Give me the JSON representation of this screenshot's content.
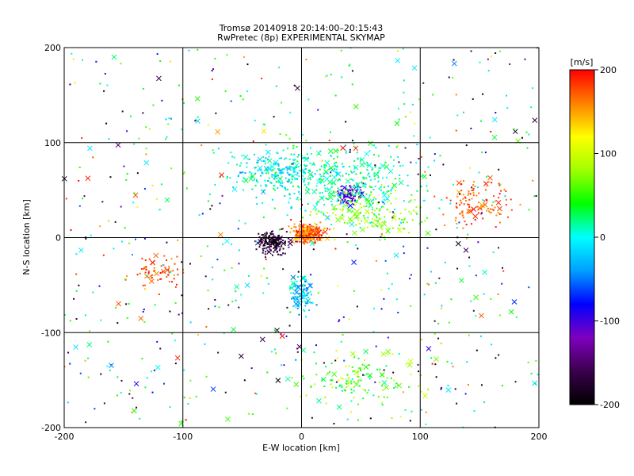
{
  "chart_data": {
    "type": "scatter",
    "title_line1": "Tromsø 20140918 20:14:00–20:15:43",
    "title_line2": "RwPretec (8p) EXPERIMENTAL SKYMAP",
    "xlabel": "E-W location [km]",
    "ylabel": "N-S location [km]",
    "xlim": [
      -200,
      200
    ],
    "ylim": [
      -200,
      200
    ],
    "xticks": [
      -200,
      -100,
      0,
      100,
      200
    ],
    "yticks": [
      -200,
      -100,
      0,
      100,
      200
    ],
    "xtick_labels": [
      "-200",
      "-100",
      "0",
      "100",
      "200"
    ],
    "ytick_labels": [
      "-200",
      "-100",
      "0",
      "100",
      "200"
    ],
    "grid_lines_x": [
      -100,
      0,
      100
    ],
    "grid_lines_y": [
      -100,
      0,
      100
    ],
    "markers": [
      "dot",
      "x"
    ],
    "colorbar": {
      "label": "[m/s]",
      "range": [
        -200,
        200
      ],
      "ticks": [
        200,
        100,
        0,
        -100,
        -200
      ],
      "tick_labels": [
        "200",
        "100",
        "0",
        "-100",
        "-200"
      ],
      "colormap": [
        "#000000",
        "#3a004d",
        "#8000c0",
        "#0000ff",
        "#00a0ff",
        "#00ffff",
        "#00ff00",
        "#a0ff00",
        "#ffff00",
        "#ff8000",
        "#ff0000"
      ]
    },
    "clusters": [
      {
        "center": [
          5,
          5
        ],
        "spread": [
          12,
          8
        ],
        "velocity": [
          130,
          200
        ]
      },
      {
        "center": [
          -25,
          -5
        ],
        "spread": [
          12,
          10
        ],
        "velocity": [
          -200,
          -150
        ]
      },
      {
        "center": [
          40,
          45
        ],
        "spread": [
          8,
          8
        ],
        "velocity": [
          -140,
          -80
        ]
      },
      {
        "center": [
          150,
          35
        ],
        "spread": [
          25,
          20
        ],
        "velocity": [
          150,
          200
        ]
      },
      {
        "center": [
          -120,
          -35
        ],
        "spread": [
          20,
          12
        ],
        "velocity": [
          150,
          200
        ]
      },
      {
        "center": [
          0,
          -60
        ],
        "spread": [
          8,
          15
        ],
        "velocity": [
          -60,
          20
        ]
      },
      {
        "center": [
          30,
          60
        ],
        "spread": [
          60,
          30
        ],
        "velocity": [
          -20,
          40
        ]
      },
      {
        "center": [
          -20,
          70
        ],
        "spread": [
          30,
          20
        ],
        "velocity": [
          -40,
          40
        ]
      },
      {
        "center": [
          50,
          -150
        ],
        "spread": [
          40,
          25
        ],
        "velocity": [
          10,
          110
        ]
      },
      {
        "center": [
          60,
          25
        ],
        "spread": [
          40,
          20
        ],
        "velocity": [
          50,
          100
        ]
      }
    ]
  }
}
